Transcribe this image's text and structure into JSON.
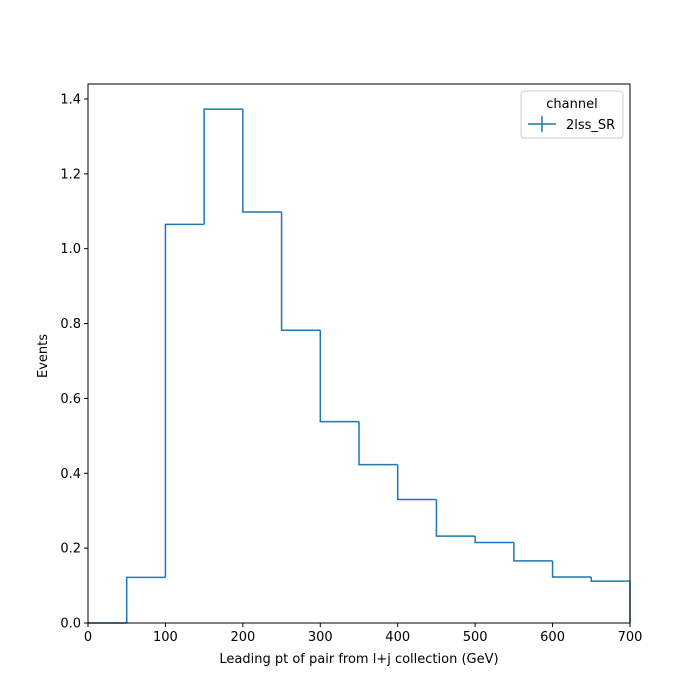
{
  "chart_data": {
    "type": "histogram",
    "xlabel": "Leading pt of pair from l+j collection (GeV)",
    "ylabel": "Events",
    "xlim": [
      0,
      700
    ],
    "ylim": [
      0,
      1.44
    ],
    "grid": false,
    "xticks": [
      0,
      100,
      200,
      300,
      400,
      500,
      600,
      700
    ],
    "yticks": [
      0.0,
      0.2,
      0.4,
      0.6,
      0.8,
      1.0,
      1.2,
      1.4
    ],
    "xtick_labels": [
      "0",
      "100",
      "200",
      "300",
      "400",
      "500",
      "600",
      "700"
    ],
    "ytick_labels": [
      "0.0",
      "0.2",
      "0.4",
      "0.6",
      "0.8",
      "1.0",
      "1.2",
      "1.4"
    ],
    "bin_edges": [
      0,
      50,
      100,
      150,
      200,
      250,
      300,
      350,
      400,
      450,
      500,
      550,
      600,
      650,
      700
    ],
    "legend": {
      "title": "channel",
      "placement": "top-right"
    },
    "series": [
      {
        "name": "2lss_SR",
        "color": "#1f77b4",
        "values": [
          0.0,
          0.122,
          1.065,
          1.373,
          1.098,
          0.782,
          0.538,
          0.423,
          0.33,
          0.232,
          0.215,
          0.166,
          0.123,
          0.112
        ]
      }
    ]
  }
}
